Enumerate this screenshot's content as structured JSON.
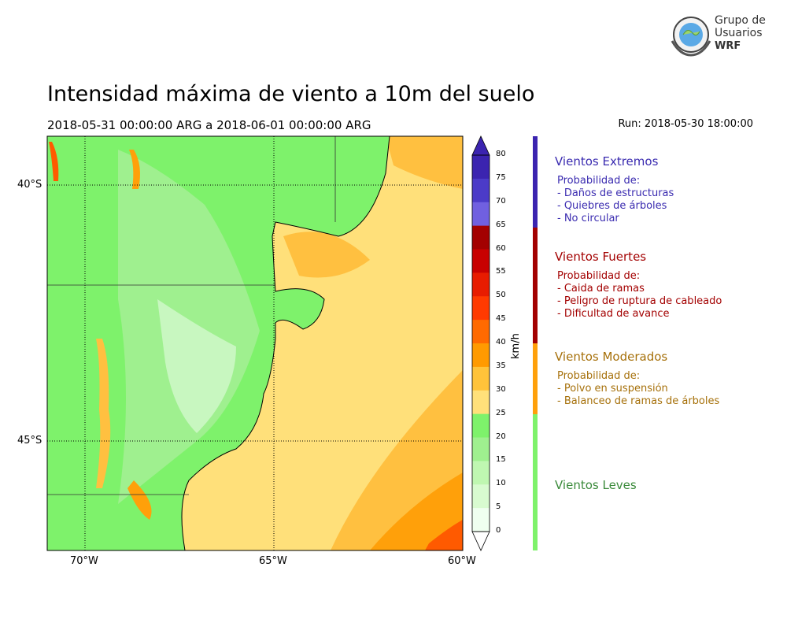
{
  "header": {
    "title": "Intensidad máxima de viento a 10m del suelo",
    "period": "2018-05-31 00:00:00 ARG  a  2018-06-01 00:00:00 ARG",
    "run": "Run: 2018-05-30 18:00:00"
  },
  "logo": {
    "line1": "Grupo de",
    "line2": "Usuarios",
    "line3": "WRF"
  },
  "map": {
    "lat_labels": [
      "40°S",
      "45°S"
    ],
    "lon_labels": [
      "70°W",
      "65°W",
      "60°W"
    ],
    "colors": {
      "leves_light": "#c8f7c0",
      "leves_mid": "#9ff08f",
      "leves_dark": "#7ef26b",
      "moderado_light": "#ffe07a",
      "moderado_mid": "#ffc040",
      "moderado_dark": "#ffa00a",
      "fuerte": "#ff5a00"
    }
  },
  "colorbar": {
    "unit": "km/h",
    "ticks": [
      "80",
      "75",
      "70",
      "65",
      "60",
      "55",
      "50",
      "45",
      "40",
      "35",
      "30",
      "25",
      "20",
      "15",
      "10",
      "5",
      "0"
    ],
    "band_colors": [
      "#3b24b0",
      "#4b3bc8",
      "#7060e0",
      "#a30000",
      "#c80000",
      "#e81c00",
      "#ff3a00",
      "#ff6a00",
      "#ff9a00",
      "#ffc33a",
      "#ffe07a",
      "#7ef26b",
      "#9ff08f",
      "#bff7b1",
      "#d8fbd0",
      "#effff0"
    ]
  },
  "categories": [
    {
      "title": "Vientos Extremos",
      "color": "#3a2bb0",
      "lines": [
        "Probabilidad de:",
        "- Daños de estructuras",
        "- Quiebres de árboles",
        "- No circular"
      ]
    },
    {
      "title": "Vientos Fuertes",
      "color": "#a30000",
      "lines": [
        "Probabilidad de:",
        "- Caida de ramas",
        "- Peligro de ruptura de cableado",
        "- Dificultad de avance"
      ]
    },
    {
      "title": "Vientos Moderados",
      "color": "#a6700a",
      "lines": [
        "Probabilidad de:",
        "- Polvo en suspensión",
        "- Balanceo de ramas de árboles"
      ]
    },
    {
      "title": "Vientos Leves",
      "color": "#3a8a3a",
      "lines": []
    }
  ]
}
